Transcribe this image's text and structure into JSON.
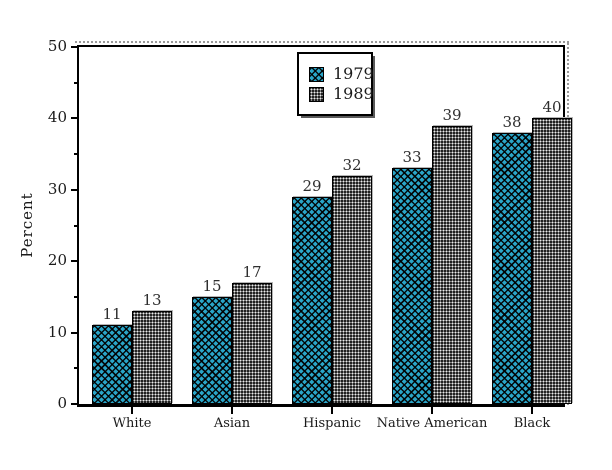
{
  "chart_data": {
    "type": "bar",
    "title": "",
    "xlabel": "",
    "ylabel": "Percent",
    "categories": [
      "White",
      "Asian",
      "Hispanic",
      "Native American",
      "Black"
    ],
    "series": [
      {
        "name": "1979",
        "values": [
          11,
          15,
          29,
          33,
          38
        ],
        "pattern": "teal-crosshatch",
        "base_color": "#2aa5c8"
      },
      {
        "name": "1989",
        "values": [
          13,
          17,
          32,
          39,
          40
        ],
        "pattern": "black-dots",
        "base_color": "#1b1b1b"
      }
    ],
    "ylim": [
      0,
      50
    ],
    "y_major_step": 10,
    "y_minor_step": 5,
    "y_tick_labels": [
      "0",
      "10",
      "20",
      "30",
      "40",
      "50"
    ],
    "bar_value_labels_visible": true,
    "legend_position": "top-center-inside",
    "grid": false,
    "axis_color": "#000000",
    "text_color": "#1a1a1a"
  }
}
